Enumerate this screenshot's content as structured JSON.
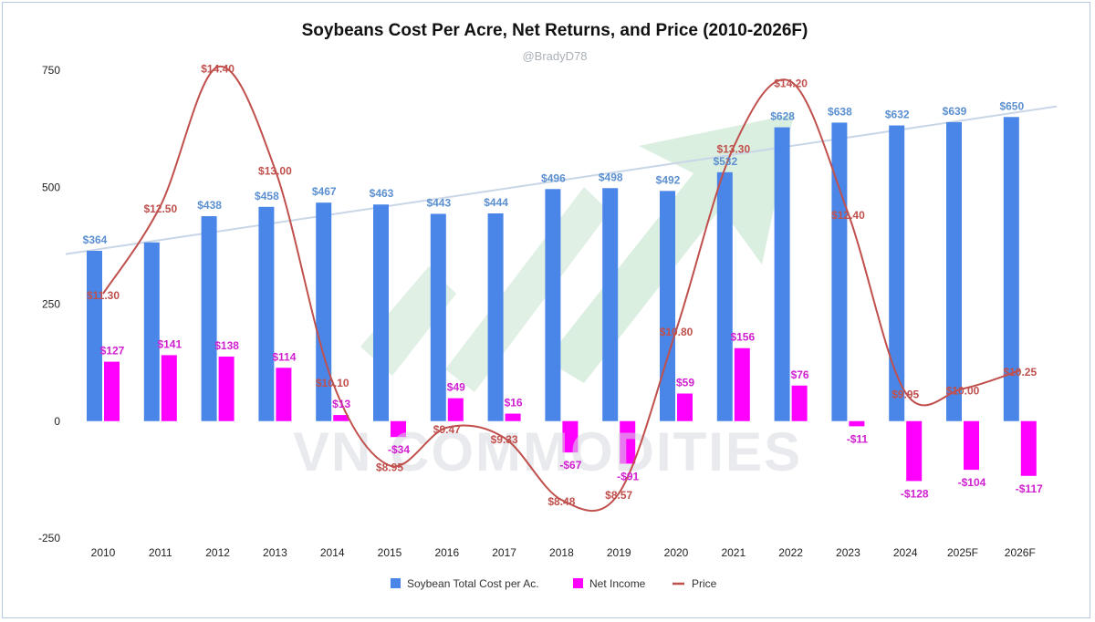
{
  "chart_data": {
    "type": "bar",
    "title": "Soybeans Cost Per Acre, Net Returns, and Price (2010-2026F)",
    "subtitle": "@BradyD78",
    "watermark": "VN COMMODITIES",
    "categories": [
      "2010",
      "2011",
      "2012",
      "2013",
      "2014",
      "2015",
      "2016",
      "2017",
      "2018",
      "2019",
      "2020",
      "2021",
      "2022",
      "2023",
      "2024",
      "2025F",
      "2026F"
    ],
    "ylim": [
      -250,
      750
    ],
    "yticks": [
      750,
      500,
      250,
      0,
      -250
    ],
    "series": [
      {
        "name": "Soybean Total Cost per Ac.",
        "type": "bar",
        "color": "#4a86e8",
        "values": [
          364,
          382,
          438,
          458,
          467,
          463,
          443,
          444,
          496,
          498,
          492,
          532,
          628,
          638,
          632,
          639,
          650
        ],
        "labels": [
          "$364",
          "",
          "$438",
          "$458",
          "$467",
          "$463",
          "$443",
          "$444",
          "$496",
          "$498",
          "$492",
          "$532",
          "$628",
          "$638",
          "$632",
          "$639",
          "$650"
        ]
      },
      {
        "name": "Net Income",
        "type": "bar",
        "color": "#ff00ff",
        "values": [
          127,
          141,
          138,
          114,
          13,
          -34,
          49,
          16,
          -67,
          -91,
          59,
          156,
          76,
          -11,
          -128,
          -104,
          -117
        ],
        "labels": [
          "$127",
          "$141",
          "$138",
          "$114",
          "$13",
          "-$34",
          "$49",
          "$16",
          "-$67",
          "-$91",
          "$59",
          "$156",
          "$76",
          "-$11",
          "-$128",
          "-$104",
          "-$117"
        ]
      },
      {
        "name": "Price",
        "type": "line",
        "color": "#c0504d",
        "values": [
          11.3,
          12.5,
          14.4,
          13.0,
          10.1,
          8.95,
          9.47,
          9.33,
          8.48,
          8.57,
          10.8,
          13.3,
          14.2,
          12.4,
          9.95,
          10.0,
          10.25
        ],
        "labels": [
          "$11.30",
          "$12.50",
          "$14.40",
          "$13.00",
          "$10.10",
          "$8.95",
          "$9.47",
          "$9.33",
          "$8.48",
          "$8.57",
          "$10.80",
          "$13.30",
          "$14.20",
          "$12.40",
          "$9.95",
          "$10.00",
          "$10.25"
        ]
      }
    ],
    "trendline": {
      "color": "#c9d6e8",
      "from": 355,
      "to": 661
    },
    "legend_position": "bottom",
    "grid": false
  }
}
